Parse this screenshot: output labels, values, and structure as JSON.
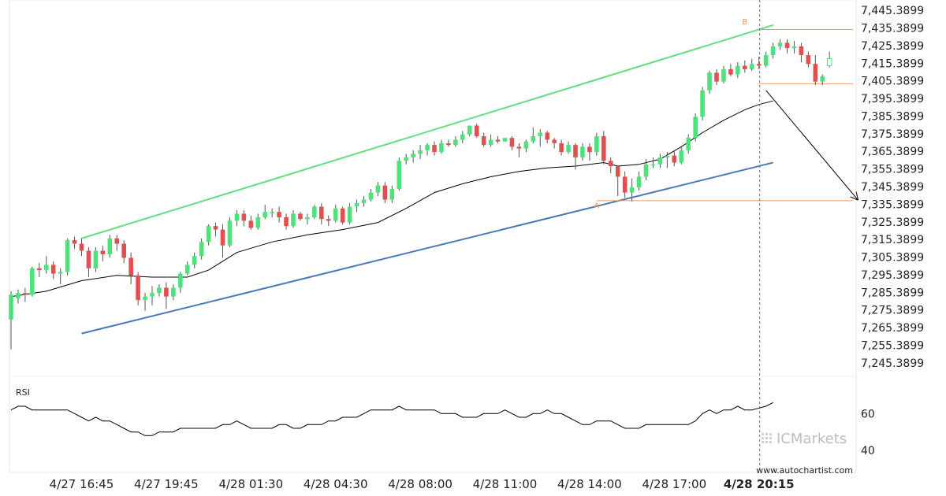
{
  "chart_data": {
    "type": "candlestick",
    "instrument_note": "",
    "y_ticks": [
      "7,445.3899",
      "7,435.3899",
      "7,425.3899",
      "7,415.3899",
      "7,405.3899",
      "7,395.3899",
      "7,385.3899",
      "7,375.3899",
      "7,365.3899",
      "7,355.3899",
      "7,345.3899",
      "7,335.3899",
      "7,325.3899",
      "7,315.3899",
      "7,305.3899",
      "7,295.3899",
      "7,285.3899",
      "7,275.3899",
      "7,265.3899",
      "7,255.3899",
      "7,245.3899"
    ],
    "y_tick_values": [
      7445.3899,
      7435.3899,
      7425.3899,
      7415.3899,
      7405.3899,
      7395.3899,
      7385.3899,
      7375.3899,
      7365.3899,
      7355.3899,
      7345.3899,
      7335.3899,
      7325.3899,
      7315.3899,
      7305.3899,
      7295.3899,
      7285.3899,
      7275.3899,
      7265.3899,
      7255.3899,
      7245.3899
    ],
    "ylim": [
      7240.4,
      7448.6
    ],
    "x_ticks": [
      {
        "label": "4/27 16:45",
        "index": 10
      },
      {
        "label": "4/27 19:45",
        "index": 22
      },
      {
        "label": "4/28 01:30",
        "index": 34
      },
      {
        "label": "4/28 04:30",
        "index": 46
      },
      {
        "label": "4/28 08:00",
        "index": 58
      },
      {
        "label": "4/28 11:00",
        "index": 70
      },
      {
        "label": "4/28 14:00",
        "index": 82
      },
      {
        "label": "4/28 17:00",
        "index": 94
      },
      {
        "label": "4/28 20:15",
        "index": 106,
        "bold": true
      }
    ],
    "candles": [
      [
        7270,
        7284,
        7253,
        7286
      ],
      [
        7282,
        7285,
        7279,
        7287
      ],
      [
        7285,
        7284,
        7280,
        7288
      ],
      [
        7284,
        7299,
        7283,
        7300
      ],
      [
        7299,
        7298,
        7294,
        7302
      ],
      [
        7298,
        7301,
        7296,
        7306
      ],
      [
        7301,
        7296,
        7293,
        7303
      ],
      [
        7296,
        7297,
        7290,
        7299
      ],
      [
        7297,
        7315,
        7295,
        7316
      ],
      [
        7315,
        7313,
        7310,
        7317
      ],
      [
        7313,
        7309,
        7306,
        7316
      ],
      [
        7309,
        7299,
        7294,
        7311
      ],
      [
        7299,
        7309,
        7297,
        7311
      ],
      [
        7309,
        7307,
        7303,
        7312
      ],
      [
        7307,
        7316,
        7305,
        7318
      ],
      [
        7316,
        7313,
        7309,
        7318
      ],
      [
        7313,
        7305,
        7302,
        7315
      ],
      [
        7305,
        7295,
        7290,
        7308
      ],
      [
        7295,
        7281,
        7278,
        7297
      ],
      [
        7281,
        7283,
        7275,
        7285
      ],
      [
        7283,
        7285,
        7278,
        7289
      ],
      [
        7285,
        7288,
        7283,
        7290
      ],
      [
        7288,
        7283,
        7276,
        7291
      ],
      [
        7283,
        7288,
        7281,
        7290
      ],
      [
        7288,
        7296,
        7285,
        7297
      ],
      [
        7296,
        7301,
        7295,
        7303
      ],
      [
        7301,
        7306,
        7299,
        7308
      ],
      [
        7306,
        7314,
        7304,
        7316
      ],
      [
        7314,
        7323,
        7312,
        7324
      ],
      [
        7323,
        7321,
        7317,
        7325
      ],
      [
        7321,
        7312,
        7305,
        7324
      ],
      [
        7312,
        7326,
        7311,
        7328
      ],
      [
        7326,
        7330,
        7323,
        7332
      ],
      [
        7330,
        7326,
        7323,
        7332
      ],
      [
        7326,
        7322,
        7321,
        7329
      ],
      [
        7322,
        7328,
        7321,
        7330
      ],
      [
        7328,
        7331,
        7327,
        7335
      ],
      [
        7331,
        7331,
        7328,
        7333
      ],
      [
        7331,
        7328,
        7325,
        7334
      ],
      [
        7328,
        7323,
        7321,
        7330
      ],
      [
        7323,
        7330,
        7322,
        7332
      ],
      [
        7330,
        7327,
        7326,
        7331
      ],
      [
        7327,
        7328,
        7324,
        7330
      ],
      [
        7328,
        7334,
        7327,
        7335
      ],
      [
        7334,
        7327,
        7324,
        7336
      ],
      [
        7327,
        7326,
        7323,
        7329
      ],
      [
        7326,
        7333,
        7325,
        7335
      ],
      [
        7333,
        7325,
        7324,
        7334
      ],
      [
        7325,
        7334,
        7324,
        7336
      ],
      [
        7334,
        7336,
        7331,
        7338
      ],
      [
        7336,
        7338,
        7334,
        7340
      ],
      [
        7338,
        7342,
        7337,
        7344
      ],
      [
        7342,
        7346,
        7340,
        7348
      ],
      [
        7346,
        7338,
        7336,
        7348
      ],
      [
        7338,
        7344,
        7336,
        7346
      ],
      [
        7344,
        7360,
        7343,
        7362
      ],
      [
        7360,
        7362,
        7358,
        7364
      ],
      [
        7362,
        7364,
        7359,
        7366
      ],
      [
        7364,
        7366,
        7361,
        7369
      ],
      [
        7366,
        7369,
        7363,
        7370
      ],
      [
        7369,
        7365,
        7363,
        7371
      ],
      [
        7365,
        7370,
        7364,
        7372
      ],
      [
        7370,
        7369,
        7368,
        7372
      ],
      [
        7369,
        7372,
        7368,
        7374
      ],
      [
        7372,
        7375,
        7370,
        7377
      ],
      [
        7375,
        7380,
        7374,
        7380
      ],
      [
        7380,
        7374,
        7373,
        7381
      ],
      [
        7374,
        7369,
        7368,
        7376
      ],
      [
        7369,
        7372,
        7368,
        7375
      ],
      [
        7372,
        7371,
        7370,
        7374
      ],
      [
        7371,
        7373,
        7371,
        7373
      ],
      [
        7373,
        7368,
        7366,
        7374
      ],
      [
        7368,
        7367,
        7362,
        7370
      ],
      [
        7367,
        7371,
        7365,
        7372
      ],
      [
        7371,
        7374,
        7370,
        7379
      ],
      [
        7374,
        7376,
        7368,
        7378
      ],
      [
        7376,
        7372,
        7370,
        7377
      ],
      [
        7372,
        7370,
        7367,
        7373
      ],
      [
        7370,
        7365,
        7363,
        7372
      ],
      [
        7365,
        7369,
        7364,
        7371
      ],
      [
        7369,
        7362,
        7355,
        7370
      ],
      [
        7362,
        7368,
        7360,
        7370
      ],
      [
        7368,
        7365,
        7360,
        7370
      ],
      [
        7365,
        7374,
        7363,
        7376
      ],
      [
        7374,
        7360,
        7358,
        7377
      ],
      [
        7360,
        7357,
        7353,
        7362
      ],
      [
        7357,
        7351,
        7340,
        7357
      ],
      [
        7351,
        7342,
        7339,
        7354
      ],
      [
        7342,
        7345,
        7337,
        7350
      ],
      [
        7345,
        7351,
        7343,
        7354
      ],
      [
        7351,
        7358,
        7349,
        7361
      ],
      [
        7358,
        7358,
        7356,
        7362
      ],
      [
        7358,
        7362,
        7356,
        7364
      ],
      [
        7362,
        7363,
        7356,
        7365
      ],
      [
        7363,
        7359,
        7357,
        7366
      ],
      [
        7359,
        7366,
        7358,
        7368
      ],
      [
        7366,
        7373,
        7364,
        7375
      ],
      [
        7373,
        7385,
        7371,
        7387
      ],
      [
        7385,
        7400,
        7383,
        7402
      ],
      [
        7400,
        7410,
        7398,
        7411
      ],
      [
        7410,
        7405,
        7403,
        7412
      ],
      [
        7405,
        7412,
        7404,
        7414
      ],
      [
        7412,
        7409,
        7408,
        7415
      ],
      [
        7409,
        7414,
        7407,
        7416
      ],
      [
        7414,
        7412,
        7410,
        7417
      ],
      [
        7412,
        7415,
        7411,
        7418
      ],
      [
        7415,
        7414,
        7412,
        7419
      ],
      [
        7414,
        7420,
        7413,
        7422
      ],
      [
        7420,
        7425,
        7418,
        7427
      ],
      [
        7425,
        7427,
        7423,
        7429
      ],
      [
        7427,
        7424,
        7421,
        7429
      ],
      [
        7424,
        7425,
        7421,
        7428
      ],
      [
        7425,
        7420,
        7416,
        7427
      ],
      [
        7420,
        7415,
        7413,
        7422
      ],
      [
        7415,
        7405,
        7403,
        7420
      ],
      [
        7405,
        7408,
        7403,
        7409
      ],
      [
        7414,
        7418,
        7413,
        7422
      ]
    ],
    "ma_line": [
      [
        0,
        7283
      ],
      [
        5,
        7286
      ],
      [
        10,
        7292
      ],
      [
        15,
        7295
      ],
      [
        20,
        7294
      ],
      [
        25,
        7294
      ],
      [
        28,
        7298
      ],
      [
        32,
        7308
      ],
      [
        37,
        7314
      ],
      [
        42,
        7318
      ],
      [
        47,
        7321
      ],
      [
        52,
        7325
      ],
      [
        56,
        7333
      ],
      [
        60,
        7342
      ],
      [
        64,
        7347
      ],
      [
        68,
        7351
      ],
      [
        72,
        7354
      ],
      [
        76,
        7356
      ],
      [
        80,
        7357
      ],
      [
        84,
        7359
      ],
      [
        86,
        7357
      ],
      [
        89,
        7358
      ],
      [
        92,
        7361
      ],
      [
        95,
        7368
      ],
      [
        98,
        7376
      ],
      [
        101,
        7383
      ],
      [
        104,
        7389
      ],
      [
        106,
        7392
      ],
      [
        108,
        7394
      ]
    ],
    "channel_upper": {
      "from": [
        10,
        7316
      ],
      "to": [
        108,
        7437
      ],
      "color": "#5ee07f"
    },
    "channel_lower": {
      "from": [
        10,
        7262
      ],
      "to": [
        108,
        7359
      ],
      "color": "#4a79b8"
    },
    "levels": [
      {
        "value": 7434.5,
        "from": 106,
        "to": 123,
        "color": "#e8965e"
      },
      {
        "value": 7403.8,
        "from": 106,
        "to": 123,
        "color": "#e8965e"
      },
      {
        "value": 7337.4,
        "from": 83,
        "to": 123,
        "color": "#e8965e"
      }
    ],
    "projection_arrow": {
      "from": [
        107,
        7400
      ],
      "to": [
        120,
        7338
      ]
    },
    "point_labels": [
      {
        "text": "B",
        "index": 104,
        "value": 7437.5
      },
      {
        "text": "A",
        "index": 83,
        "value": 7333.0
      }
    ],
    "current_time_index": 106,
    "up_color": "#4ce37a",
    "down_color": "#e0504f",
    "ma_color": "#000000",
    "rsi": {
      "label": "RSI",
      "ticks": [
        "60",
        "40"
      ],
      "tick_values": [
        60,
        40
      ],
      "ylim": [
        28,
        76
      ],
      "values": [
        62,
        64,
        64,
        62,
        62,
        62,
        62,
        62,
        62,
        60,
        58,
        56,
        58,
        56,
        56,
        54,
        52,
        50,
        50,
        48,
        48,
        50,
        50,
        50,
        52,
        52,
        52,
        52,
        52,
        52,
        54,
        54,
        56,
        54,
        52,
        52,
        52,
        52,
        54,
        54,
        52,
        52,
        54,
        54,
        54,
        56,
        56,
        58,
        58,
        58,
        60,
        62,
        62,
        62,
        62,
        64,
        62,
        62,
        62,
        62,
        62,
        60,
        60,
        60,
        58,
        58,
        58,
        60,
        60,
        60,
        62,
        60,
        58,
        58,
        60,
        60,
        62,
        60,
        60,
        58,
        56,
        54,
        54,
        56,
        56,
        56,
        54,
        52,
        52,
        52,
        54,
        54,
        54,
        54,
        54,
        54,
        54,
        56,
        60,
        62,
        60,
        62,
        62,
        64,
        62,
        62,
        63,
        64,
        66
      ]
    },
    "watermark": "ICMarkets",
    "source_text": "www.autochartist.com"
  }
}
